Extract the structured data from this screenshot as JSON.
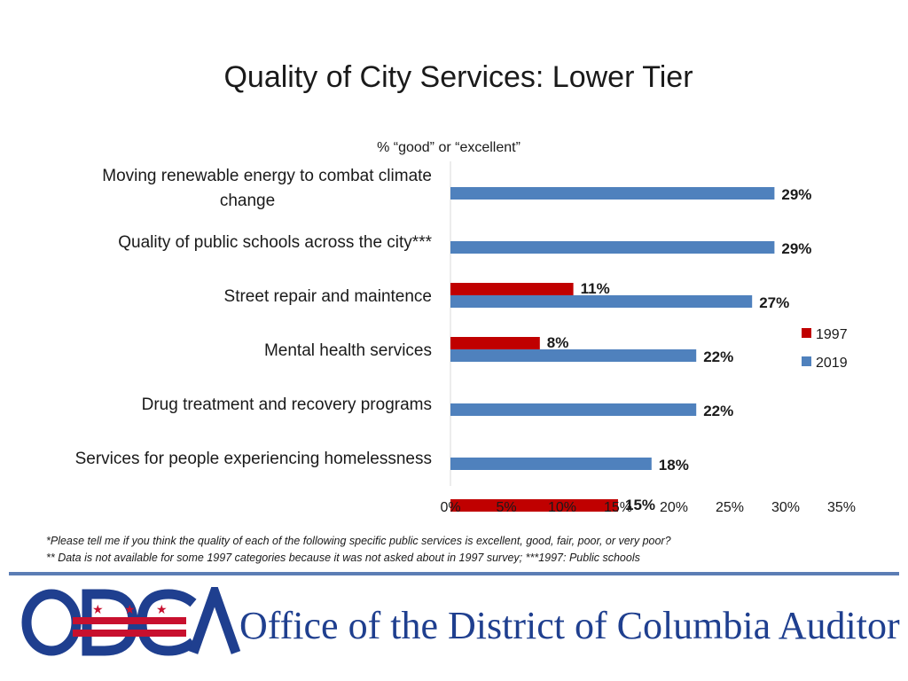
{
  "chart_data": {
    "type": "bar",
    "orientation": "horizontal",
    "title": "Quality of City Services: Lower Tier",
    "subtitle": "% “good” or “excellent”",
    "categories": [
      [
        "Moving renewable energy to combat climate",
        "change"
      ],
      [
        "Quality of public schools across the city***"
      ],
      [
        "Street repair and maintence"
      ],
      [
        "Mental health services"
      ],
      [
        "Drug treatment and recovery programs"
      ],
      [
        "Services for people experiencing homelessness"
      ]
    ],
    "series": [
      {
        "name": "1997",
        "color": "#c00000",
        "values": [
          null,
          11,
          8,
          null,
          null,
          15
        ]
      },
      {
        "name": "2019",
        "color": "#4f81bd",
        "values": [
          29,
          29,
          27,
          22,
          22,
          18
        ]
      }
    ],
    "data_labels": {
      "1997": [
        "",
        "11%",
        "8%",
        "",
        "",
        "15%"
      ],
      "2019": [
        "29%",
        "29%",
        "27%",
        "22%",
        "22%",
        "18%"
      ]
    },
    "xlim": [
      0,
      35
    ],
    "xticks": [
      0,
      5,
      10,
      15,
      20,
      25,
      30,
      35
    ],
    "xtick_labels": [
      "0%",
      "5%",
      "10%",
      "15%",
      "20%",
      "25%",
      "30%",
      "35%"
    ],
    "grid": false,
    "legend": "right"
  },
  "footnotes": [
    "*Please tell me if you think the quality of each of the following specific public services is excellent, good, fair, poor, or very poor?",
    "** Data is not available for some 1997 categories because it was not asked about in 1997 survey; ***1997: Public schools"
  ],
  "logo": {
    "letters": "ODCA",
    "org_name": "Office of the District of Columbia Auditor",
    "colors": {
      "blue": "#1f3f8f",
      "red": "#c8102e"
    }
  }
}
